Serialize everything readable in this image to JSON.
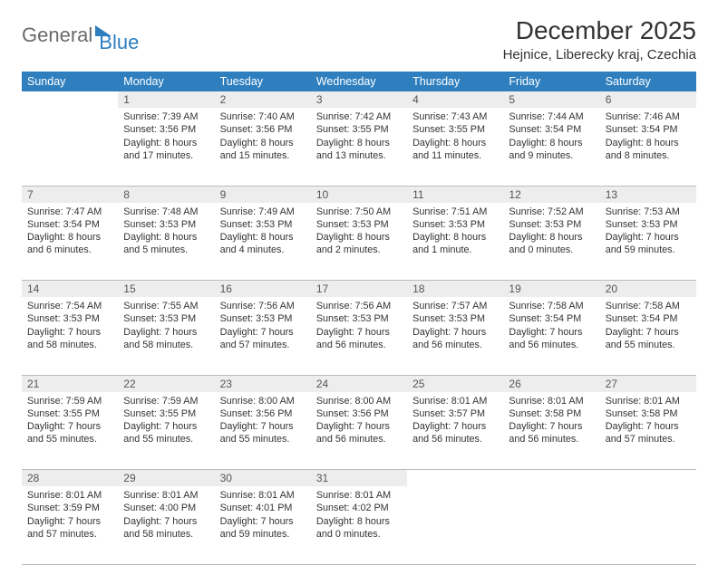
{
  "brand": {
    "general": "General",
    "blue": "Blue"
  },
  "title": "December 2025",
  "location": "Hejnice, Liberecky kraj, Czechia",
  "colors": {
    "header_bg": "#2f7fbf",
    "header_text": "#ffffff",
    "daynum_bg": "#ededed",
    "text": "#333333",
    "border": "#bbbbbb",
    "logo_gray": "#6a6a6a",
    "logo_blue": "#2f7fbf",
    "page_bg": "#ffffff"
  },
  "typography": {
    "title_fontsize": 28,
    "location_fontsize": 15,
    "header_fontsize": 12.5,
    "daynum_fontsize": 12,
    "cell_fontsize": 10.8
  },
  "weekdays": [
    "Sunday",
    "Monday",
    "Tuesday",
    "Wednesday",
    "Thursday",
    "Friday",
    "Saturday"
  ],
  "weeks": [
    {
      "nums": [
        "",
        "1",
        "2",
        "3",
        "4",
        "5",
        "6"
      ],
      "cells": [
        null,
        {
          "sunrise": "Sunrise: 7:39 AM",
          "sunset": "Sunset: 3:56 PM",
          "day1": "Daylight: 8 hours",
          "day2": "and 17 minutes."
        },
        {
          "sunrise": "Sunrise: 7:40 AM",
          "sunset": "Sunset: 3:56 PM",
          "day1": "Daylight: 8 hours",
          "day2": "and 15 minutes."
        },
        {
          "sunrise": "Sunrise: 7:42 AM",
          "sunset": "Sunset: 3:55 PM",
          "day1": "Daylight: 8 hours",
          "day2": "and 13 minutes."
        },
        {
          "sunrise": "Sunrise: 7:43 AM",
          "sunset": "Sunset: 3:55 PM",
          "day1": "Daylight: 8 hours",
          "day2": "and 11 minutes."
        },
        {
          "sunrise": "Sunrise: 7:44 AM",
          "sunset": "Sunset: 3:54 PM",
          "day1": "Daylight: 8 hours",
          "day2": "and 9 minutes."
        },
        {
          "sunrise": "Sunrise: 7:46 AM",
          "sunset": "Sunset: 3:54 PM",
          "day1": "Daylight: 8 hours",
          "day2": "and 8 minutes."
        }
      ]
    },
    {
      "nums": [
        "7",
        "8",
        "9",
        "10",
        "11",
        "12",
        "13"
      ],
      "cells": [
        {
          "sunrise": "Sunrise: 7:47 AM",
          "sunset": "Sunset: 3:54 PM",
          "day1": "Daylight: 8 hours",
          "day2": "and 6 minutes."
        },
        {
          "sunrise": "Sunrise: 7:48 AM",
          "sunset": "Sunset: 3:53 PM",
          "day1": "Daylight: 8 hours",
          "day2": "and 5 minutes."
        },
        {
          "sunrise": "Sunrise: 7:49 AM",
          "sunset": "Sunset: 3:53 PM",
          "day1": "Daylight: 8 hours",
          "day2": "and 4 minutes."
        },
        {
          "sunrise": "Sunrise: 7:50 AM",
          "sunset": "Sunset: 3:53 PM",
          "day1": "Daylight: 8 hours",
          "day2": "and 2 minutes."
        },
        {
          "sunrise": "Sunrise: 7:51 AM",
          "sunset": "Sunset: 3:53 PM",
          "day1": "Daylight: 8 hours",
          "day2": "and 1 minute."
        },
        {
          "sunrise": "Sunrise: 7:52 AM",
          "sunset": "Sunset: 3:53 PM",
          "day1": "Daylight: 8 hours",
          "day2": "and 0 minutes."
        },
        {
          "sunrise": "Sunrise: 7:53 AM",
          "sunset": "Sunset: 3:53 PM",
          "day1": "Daylight: 7 hours",
          "day2": "and 59 minutes."
        }
      ]
    },
    {
      "nums": [
        "14",
        "15",
        "16",
        "17",
        "18",
        "19",
        "20"
      ],
      "cells": [
        {
          "sunrise": "Sunrise: 7:54 AM",
          "sunset": "Sunset: 3:53 PM",
          "day1": "Daylight: 7 hours",
          "day2": "and 58 minutes."
        },
        {
          "sunrise": "Sunrise: 7:55 AM",
          "sunset": "Sunset: 3:53 PM",
          "day1": "Daylight: 7 hours",
          "day2": "and 58 minutes."
        },
        {
          "sunrise": "Sunrise: 7:56 AM",
          "sunset": "Sunset: 3:53 PM",
          "day1": "Daylight: 7 hours",
          "day2": "and 57 minutes."
        },
        {
          "sunrise": "Sunrise: 7:56 AM",
          "sunset": "Sunset: 3:53 PM",
          "day1": "Daylight: 7 hours",
          "day2": "and 56 minutes."
        },
        {
          "sunrise": "Sunrise: 7:57 AM",
          "sunset": "Sunset: 3:53 PM",
          "day1": "Daylight: 7 hours",
          "day2": "and 56 minutes."
        },
        {
          "sunrise": "Sunrise: 7:58 AM",
          "sunset": "Sunset: 3:54 PM",
          "day1": "Daylight: 7 hours",
          "day2": "and 56 minutes."
        },
        {
          "sunrise": "Sunrise: 7:58 AM",
          "sunset": "Sunset: 3:54 PM",
          "day1": "Daylight: 7 hours",
          "day2": "and 55 minutes."
        }
      ]
    },
    {
      "nums": [
        "21",
        "22",
        "23",
        "24",
        "25",
        "26",
        "27"
      ],
      "cells": [
        {
          "sunrise": "Sunrise: 7:59 AM",
          "sunset": "Sunset: 3:55 PM",
          "day1": "Daylight: 7 hours",
          "day2": "and 55 minutes."
        },
        {
          "sunrise": "Sunrise: 7:59 AM",
          "sunset": "Sunset: 3:55 PM",
          "day1": "Daylight: 7 hours",
          "day2": "and 55 minutes."
        },
        {
          "sunrise": "Sunrise: 8:00 AM",
          "sunset": "Sunset: 3:56 PM",
          "day1": "Daylight: 7 hours",
          "day2": "and 55 minutes."
        },
        {
          "sunrise": "Sunrise: 8:00 AM",
          "sunset": "Sunset: 3:56 PM",
          "day1": "Daylight: 7 hours",
          "day2": "and 56 minutes."
        },
        {
          "sunrise": "Sunrise: 8:01 AM",
          "sunset": "Sunset: 3:57 PM",
          "day1": "Daylight: 7 hours",
          "day2": "and 56 minutes."
        },
        {
          "sunrise": "Sunrise: 8:01 AM",
          "sunset": "Sunset: 3:58 PM",
          "day1": "Daylight: 7 hours",
          "day2": "and 56 minutes."
        },
        {
          "sunrise": "Sunrise: 8:01 AM",
          "sunset": "Sunset: 3:58 PM",
          "day1": "Daylight: 7 hours",
          "day2": "and 57 minutes."
        }
      ]
    },
    {
      "nums": [
        "28",
        "29",
        "30",
        "31",
        "",
        "",
        ""
      ],
      "cells": [
        {
          "sunrise": "Sunrise: 8:01 AM",
          "sunset": "Sunset: 3:59 PM",
          "day1": "Daylight: 7 hours",
          "day2": "and 57 minutes."
        },
        {
          "sunrise": "Sunrise: 8:01 AM",
          "sunset": "Sunset: 4:00 PM",
          "day1": "Daylight: 7 hours",
          "day2": "and 58 minutes."
        },
        {
          "sunrise": "Sunrise: 8:01 AM",
          "sunset": "Sunset: 4:01 PM",
          "day1": "Daylight: 7 hours",
          "day2": "and 59 minutes."
        },
        {
          "sunrise": "Sunrise: 8:01 AM",
          "sunset": "Sunset: 4:02 PM",
          "day1": "Daylight: 8 hours",
          "day2": "and 0 minutes."
        },
        null,
        null,
        null
      ]
    }
  ]
}
